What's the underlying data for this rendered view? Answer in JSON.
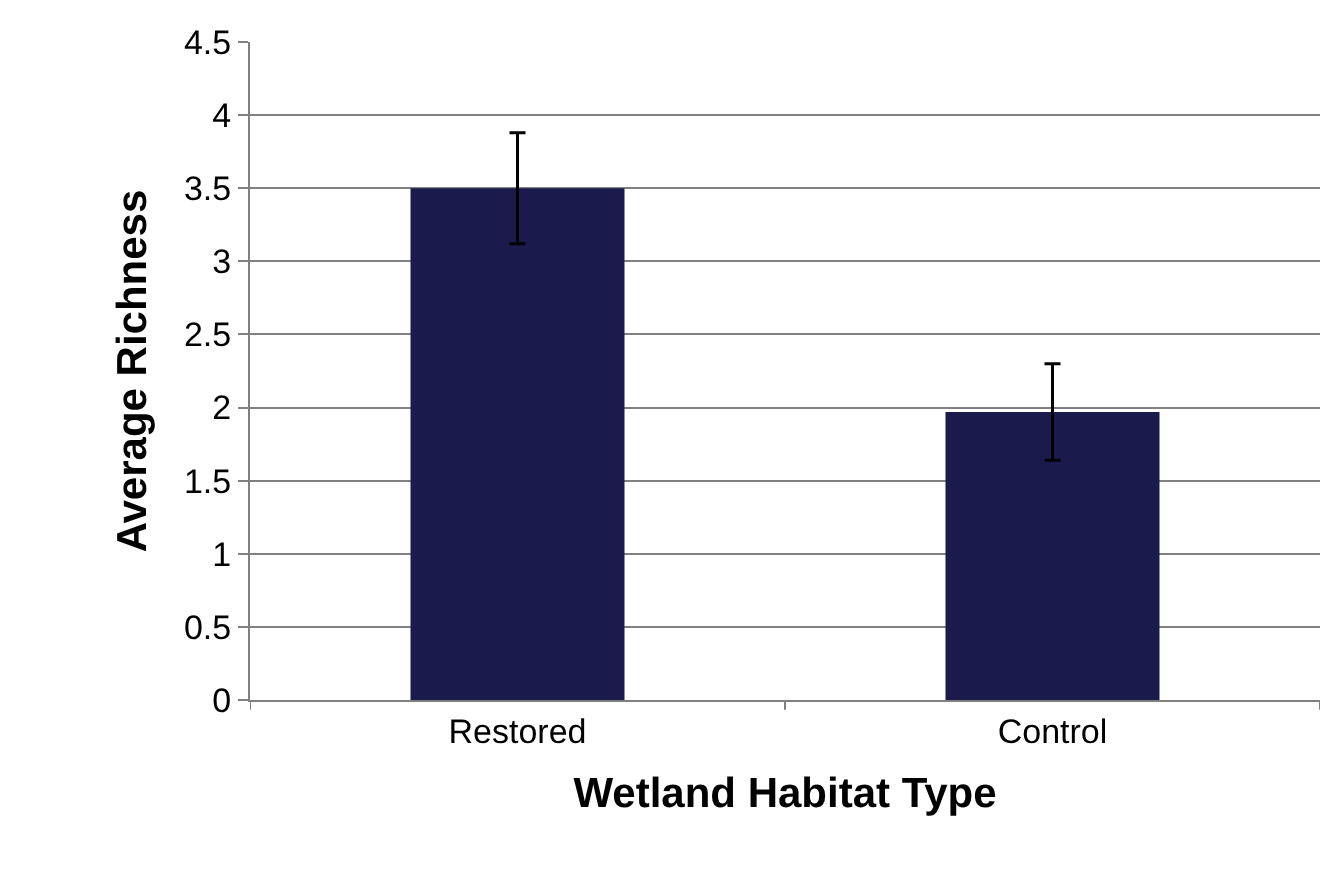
{
  "chart_data": {
    "type": "bar",
    "xlabel": "Wetland Habitat Type",
    "ylabel": "Average Richness",
    "categories": [
      "Restored",
      "Control"
    ],
    "values": [
      3.5,
      1.97
    ],
    "errors": [
      0.38,
      0.33
    ],
    "color": "#1b1a4c",
    "ylim": [
      0,
      4.5
    ],
    "yticks": [
      0,
      0.5,
      1,
      1.5,
      2,
      2.5,
      3,
      3.5,
      4,
      4.5
    ],
    "grid": "y"
  }
}
